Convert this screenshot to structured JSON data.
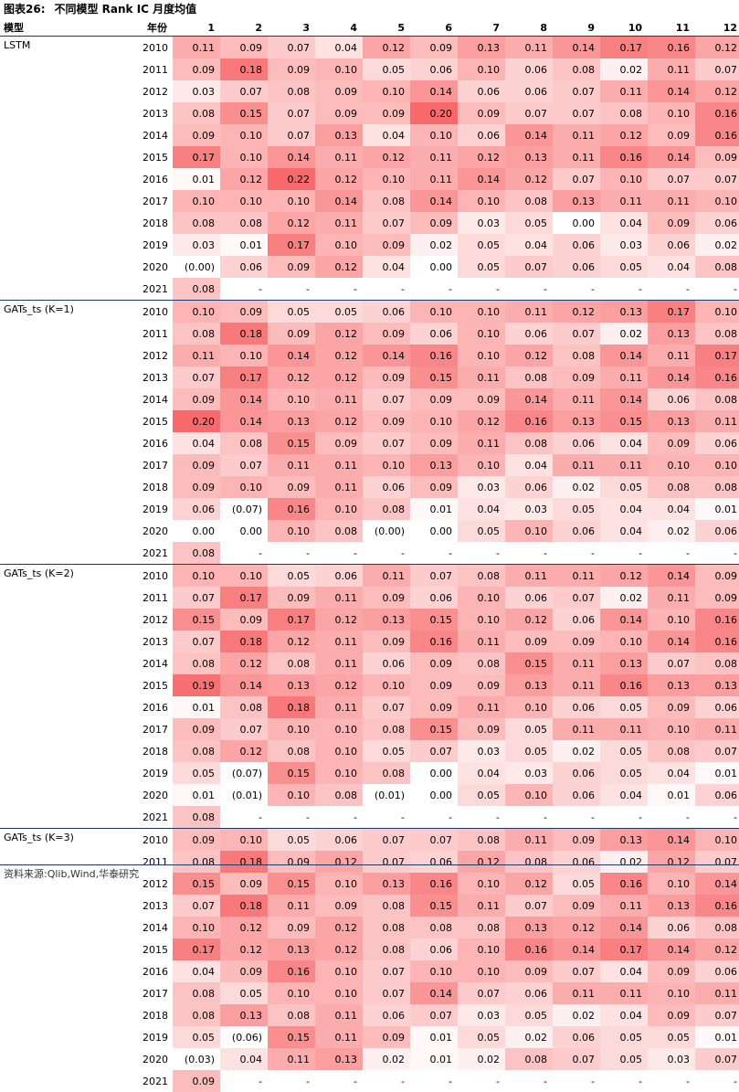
{
  "title": {
    "prefix": "图表26:",
    "text": "不同模型 Rank IC 月度均值"
  },
  "header": {
    "model": "模型",
    "year": "年份",
    "months": [
      "1",
      "2",
      "3",
      "4",
      "5",
      "6",
      "7",
      "8",
      "9",
      "10",
      "11",
      "12"
    ]
  },
  "groups": [
    {
      "model": "LSTM",
      "rows": [
        {
          "year": "2010",
          "values": [
            "0.11",
            "0.09",
            "0.07",
            "0.04",
            "0.12",
            "0.09",
            "0.13",
            "0.11",
            "0.14",
            "0.17",
            "0.16",
            "0.12"
          ]
        },
        {
          "year": "2011",
          "values": [
            "0.09",
            "0.18",
            "0.09",
            "0.10",
            "0.05",
            "0.06",
            "0.10",
            "0.06",
            "0.08",
            "0.02",
            "0.11",
            "0.07"
          ]
        },
        {
          "year": "2012",
          "values": [
            "0.03",
            "0.07",
            "0.08",
            "0.09",
            "0.10",
            "0.14",
            "0.06",
            "0.06",
            "0.07",
            "0.11",
            "0.14",
            "0.12"
          ]
        },
        {
          "year": "2013",
          "values": [
            "0.08",
            "0.15",
            "0.07",
            "0.09",
            "0.09",
            "0.20",
            "0.09",
            "0.07",
            "0.07",
            "0.08",
            "0.10",
            "0.16"
          ]
        },
        {
          "year": "2014",
          "values": [
            "0.09",
            "0.10",
            "0.07",
            "0.13",
            "0.04",
            "0.10",
            "0.06",
            "0.14",
            "0.11",
            "0.12",
            "0.09",
            "0.16"
          ]
        },
        {
          "year": "2015",
          "values": [
            "0.17",
            "0.10",
            "0.14",
            "0.11",
            "0.12",
            "0.11",
            "0.12",
            "0.13",
            "0.11",
            "0.16",
            "0.14",
            "0.09"
          ]
        },
        {
          "year": "2016",
          "values": [
            "0.01",
            "0.12",
            "0.22",
            "0.12",
            "0.10",
            "0.11",
            "0.14",
            "0.12",
            "0.07",
            "0.10",
            "0.07",
            "0.07"
          ]
        },
        {
          "year": "2017",
          "values": [
            "0.10",
            "0.10",
            "0.10",
            "0.14",
            "0.08",
            "0.14",
            "0.10",
            "0.08",
            "0.13",
            "0.11",
            "0.11",
            "0.10"
          ]
        },
        {
          "year": "2018",
          "values": [
            "0.08",
            "0.08",
            "0.12",
            "0.11",
            "0.07",
            "0.09",
            "0.03",
            "0.05",
            "0.00",
            "0.04",
            "0.09",
            "0.06"
          ]
        },
        {
          "year": "2019",
          "values": [
            "0.03",
            "0.01",
            "0.17",
            "0.10",
            "0.09",
            "0.02",
            "0.05",
            "0.04",
            "0.06",
            "0.03",
            "0.06",
            "0.02"
          ]
        },
        {
          "year": "2020",
          "values": [
            "(0.00)",
            "0.06",
            "0.09",
            "0.12",
            "0.04",
            "0.00",
            "0.05",
            "0.07",
            "0.06",
            "0.05",
            "0.04",
            "0.08"
          ]
        },
        {
          "year": "2021",
          "values": [
            "0.08",
            "-",
            "-",
            "-",
            "-",
            "-",
            "-",
            "-",
            "-",
            "-",
            "-",
            "-"
          ]
        }
      ]
    },
    {
      "model": "GATs_ts (K=1)",
      "rows": [
        {
          "year": "2010",
          "values": [
            "0.10",
            "0.09",
            "0.05",
            "0.05",
            "0.06",
            "0.10",
            "0.10",
            "0.11",
            "0.12",
            "0.13",
            "0.17",
            "0.10"
          ]
        },
        {
          "year": "2011",
          "values": [
            "0.08",
            "0.18",
            "0.09",
            "0.12",
            "0.09",
            "0.06",
            "0.10",
            "0.06",
            "0.07",
            "0.02",
            "0.13",
            "0.08"
          ]
        },
        {
          "year": "2012",
          "values": [
            "0.11",
            "0.10",
            "0.14",
            "0.12",
            "0.14",
            "0.16",
            "0.10",
            "0.12",
            "0.08",
            "0.14",
            "0.11",
            "0.17"
          ]
        },
        {
          "year": "2013",
          "values": [
            "0.07",
            "0.17",
            "0.12",
            "0.12",
            "0.09",
            "0.15",
            "0.11",
            "0.08",
            "0.09",
            "0.11",
            "0.14",
            "0.16"
          ]
        },
        {
          "year": "2014",
          "values": [
            "0.09",
            "0.14",
            "0.10",
            "0.11",
            "0.07",
            "0.09",
            "0.09",
            "0.14",
            "0.11",
            "0.14",
            "0.06",
            "0.08"
          ]
        },
        {
          "year": "2015",
          "values": [
            "0.20",
            "0.14",
            "0.13",
            "0.12",
            "0.09",
            "0.10",
            "0.12",
            "0.16",
            "0.13",
            "0.15",
            "0.13",
            "0.11"
          ]
        },
        {
          "year": "2016",
          "values": [
            "0.04",
            "0.08",
            "0.15",
            "0.09",
            "0.07",
            "0.09",
            "0.11",
            "0.08",
            "0.06",
            "0.04",
            "0.09",
            "0.06"
          ]
        },
        {
          "year": "2017",
          "values": [
            "0.09",
            "0.07",
            "0.11",
            "0.11",
            "0.10",
            "0.13",
            "0.10",
            "0.04",
            "0.11",
            "0.11",
            "0.10",
            "0.10"
          ]
        },
        {
          "year": "2018",
          "values": [
            "0.09",
            "0.10",
            "0.09",
            "0.11",
            "0.06",
            "0.09",
            "0.03",
            "0.06",
            "0.02",
            "0.05",
            "0.08",
            "0.08"
          ]
        },
        {
          "year": "2019",
          "values": [
            "0.06",
            "(0.07)",
            "0.16",
            "0.10",
            "0.08",
            "0.01",
            "0.04",
            "0.03",
            "0.05",
            "0.04",
            "0.04",
            "0.01"
          ]
        },
        {
          "year": "2020",
          "values": [
            "0.00",
            "0.00",
            "0.10",
            "0.08",
            "(0.00)",
            "0.00",
            "0.05",
            "0.10",
            "0.06",
            "0.04",
            "0.02",
            "0.06"
          ]
        },
        {
          "year": "2021",
          "values": [
            "0.08",
            "-",
            "-",
            "-",
            "-",
            "-",
            "-",
            "-",
            "-",
            "-",
            "-",
            "-"
          ]
        }
      ]
    },
    {
      "model": "GATs_ts (K=2)",
      "rows": [
        {
          "year": "2010",
          "values": [
            "0.10",
            "0.10",
            "0.05",
            "0.06",
            "0.11",
            "0.07",
            "0.08",
            "0.11",
            "0.11",
            "0.12",
            "0.14",
            "0.09"
          ]
        },
        {
          "year": "2011",
          "values": [
            "0.07",
            "0.17",
            "0.09",
            "0.11",
            "0.09",
            "0.06",
            "0.10",
            "0.06",
            "0.07",
            "0.02",
            "0.11",
            "0.09"
          ]
        },
        {
          "year": "2012",
          "values": [
            "0.15",
            "0.09",
            "0.17",
            "0.12",
            "0.13",
            "0.15",
            "0.10",
            "0.12",
            "0.06",
            "0.14",
            "0.10",
            "0.16"
          ]
        },
        {
          "year": "2013",
          "values": [
            "0.07",
            "0.18",
            "0.12",
            "0.11",
            "0.09",
            "0.16",
            "0.11",
            "0.09",
            "0.09",
            "0.10",
            "0.14",
            "0.16"
          ]
        },
        {
          "year": "2014",
          "values": [
            "0.08",
            "0.12",
            "0.08",
            "0.11",
            "0.06",
            "0.09",
            "0.08",
            "0.15",
            "0.11",
            "0.13",
            "0.07",
            "0.08"
          ]
        },
        {
          "year": "2015",
          "values": [
            "0.19",
            "0.14",
            "0.13",
            "0.12",
            "0.10",
            "0.09",
            "0.09",
            "0.13",
            "0.11",
            "0.16",
            "0.13",
            "0.13"
          ]
        },
        {
          "year": "2016",
          "values": [
            "0.01",
            "0.08",
            "0.18",
            "0.11",
            "0.07",
            "0.09",
            "0.11",
            "0.10",
            "0.06",
            "0.05",
            "0.09",
            "0.06"
          ]
        },
        {
          "year": "2017",
          "values": [
            "0.09",
            "0.07",
            "0.10",
            "0.10",
            "0.08",
            "0.15",
            "0.09",
            "0.05",
            "0.11",
            "0.11",
            "0.10",
            "0.11"
          ]
        },
        {
          "year": "2018",
          "values": [
            "0.08",
            "0.12",
            "0.08",
            "0.10",
            "0.05",
            "0.07",
            "0.03",
            "0.05",
            "0.02",
            "0.05",
            "0.08",
            "0.07"
          ]
        },
        {
          "year": "2019",
          "values": [
            "0.05",
            "(0.07)",
            "0.15",
            "0.10",
            "0.08",
            "0.00",
            "0.04",
            "0.03",
            "0.06",
            "0.05",
            "0.04",
            "0.01"
          ]
        },
        {
          "year": "2020",
          "values": [
            "0.01",
            "(0.01)",
            "0.10",
            "0.08",
            "(0.01)",
            "0.00",
            "0.05",
            "0.10",
            "0.06",
            "0.04",
            "0.01",
            "0.06"
          ]
        },
        {
          "year": "2021",
          "values": [
            "0.08",
            "-",
            "-",
            "-",
            "-",
            "-",
            "-",
            "-",
            "-",
            "-",
            "-",
            "-"
          ]
        }
      ]
    },
    {
      "model": "GATs_ts (K=3)",
      "rows": [
        {
          "year": "2010",
          "values": [
            "0.09",
            "0.10",
            "0.05",
            "0.06",
            "0.07",
            "0.07",
            "0.08",
            "0.11",
            "0.09",
            "0.13",
            "0.14",
            "0.10"
          ]
        },
        {
          "year": "2011",
          "values": [
            "0.08",
            "0.18",
            "0.09",
            "0.12",
            "0.07",
            "0.06",
            "0.12",
            "0.08",
            "0.06",
            "0.02",
            "0.12",
            "0.07"
          ]
        },
        {
          "year": "2012",
          "values": [
            "0.15",
            "0.09",
            "0.15",
            "0.10",
            "0.13",
            "0.16",
            "0.10",
            "0.12",
            "0.05",
            "0.16",
            "0.10",
            "0.14"
          ]
        },
        {
          "year": "2013",
          "values": [
            "0.07",
            "0.18",
            "0.11",
            "0.09",
            "0.08",
            "0.15",
            "0.11",
            "0.07",
            "0.09",
            "0.11",
            "0.13",
            "0.16"
          ]
        },
        {
          "year": "2014",
          "values": [
            "0.10",
            "0.12",
            "0.09",
            "0.12",
            "0.08",
            "0.08",
            "0.08",
            "0.13",
            "0.12",
            "0.14",
            "0.06",
            "0.08"
          ]
        },
        {
          "year": "2015",
          "values": [
            "0.17",
            "0.12",
            "0.13",
            "0.12",
            "0.08",
            "0.06",
            "0.10",
            "0.16",
            "0.14",
            "0.17",
            "0.14",
            "0.12"
          ]
        },
        {
          "year": "2016",
          "values": [
            "0.04",
            "0.09",
            "0.16",
            "0.10",
            "0.07",
            "0.10",
            "0.10",
            "0.09",
            "0.07",
            "0.04",
            "0.09",
            "0.06"
          ]
        },
        {
          "year": "2017",
          "values": [
            "0.08",
            "0.05",
            "0.10",
            "0.10",
            "0.07",
            "0.14",
            "0.07",
            "0.06",
            "0.11",
            "0.11",
            "0.10",
            "0.11"
          ]
        },
        {
          "year": "2018",
          "values": [
            "0.08",
            "0.13",
            "0.08",
            "0.11",
            "0.06",
            "0.07",
            "0.03",
            "0.05",
            "0.02",
            "0.04",
            "0.09",
            "0.07"
          ]
        },
        {
          "year": "2019",
          "values": [
            "0.05",
            "(0.06)",
            "0.15",
            "0.11",
            "0.09",
            "0.01",
            "0.05",
            "0.02",
            "0.06",
            "0.05",
            "0.05",
            "0.01"
          ]
        },
        {
          "year": "2020",
          "values": [
            "(0.03)",
            "0.04",
            "0.11",
            "0.13",
            "0.02",
            "0.01",
            "0.02",
            "0.08",
            "0.07",
            "0.05",
            "0.03",
            "0.07"
          ]
        },
        {
          "year": "2021",
          "values": [
            "0.09",
            "-",
            "-",
            "-",
            "-",
            "-",
            "-",
            "-",
            "-",
            "-",
            "-",
            "-"
          ]
        }
      ]
    }
  ],
  "heat_colors": {
    "low": "#ffffff",
    "high": "#f8696b"
  },
  "heat_scale": {
    "min": 0.0,
    "max": 0.2
  },
  "source": "资料来源:Qlib,Wind,华泰研究"
}
